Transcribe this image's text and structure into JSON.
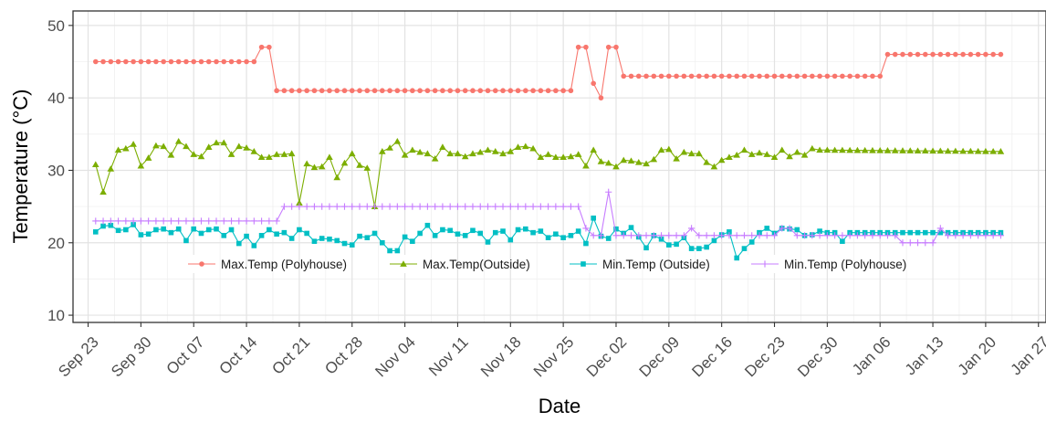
{
  "chart_data": {
    "type": "line",
    "title": "",
    "xlabel": "Date",
    "ylabel": "Temperature (°C)",
    "ylim": [
      9,
      52
    ],
    "xlim": [
      "2021-09-21",
      "2022-01-28"
    ],
    "year": 2021,
    "x_ticks": [
      "Sep 23",
      "Sep 30",
      "Oct 07",
      "Oct 14",
      "Oct 21",
      "Oct 28",
      "Nov 04",
      "Nov 11",
      "Nov 18",
      "Nov 25",
      "Dec 02",
      "Dec 09",
      "Dec 16",
      "Dec 23",
      "Dec 30",
      "Jan 06",
      "Jan 13",
      "Jan 20",
      "Jan 27"
    ],
    "y_ticks": [
      10,
      20,
      30,
      40,
      50
    ],
    "grid": true,
    "legend_position": "inside-bottom",
    "series": [
      {
        "name": "Max.Temp (Polyhouse)",
        "color": "#f8766d",
        "marker": "circle",
        "points": [
          [
            "2021-09-24",
            45
          ],
          [
            "2021-10-15",
            45
          ],
          [
            "2021-10-16",
            47
          ],
          [
            "2021-10-17",
            47
          ],
          [
            "2021-10-18",
            41
          ],
          [
            "2021-11-26",
            41
          ],
          [
            "2021-11-27",
            47
          ],
          [
            "2021-11-28",
            47
          ],
          [
            "2021-11-29",
            42
          ],
          [
            "2021-11-30",
            40
          ],
          [
            "2021-12-01",
            47
          ],
          [
            "2021-12-02",
            47
          ],
          [
            "2021-12-03",
            43
          ],
          [
            "2022-01-06",
            43
          ],
          [
            "2022-01-07",
            46
          ],
          [
            "2022-01-22",
            46
          ]
        ]
      },
      {
        "name": "Max.Temp(Outside)",
        "color": "#7cae00",
        "marker": "triangle",
        "points": [
          [
            "2021-09-24",
            30.8
          ],
          [
            "2021-09-25",
            27
          ],
          [
            "2021-09-26",
            30.2
          ],
          [
            "2021-09-27",
            32.8
          ],
          [
            "2021-09-28",
            33
          ],
          [
            "2021-09-29",
            33.6
          ],
          [
            "2021-09-30",
            30.6
          ],
          [
            "2021-10-01",
            31.7
          ],
          [
            "2021-10-02",
            33.4
          ],
          [
            "2021-10-03",
            33.3
          ],
          [
            "2021-10-04",
            32.1
          ],
          [
            "2021-10-05",
            34
          ],
          [
            "2021-10-06",
            33.3
          ],
          [
            "2021-10-07",
            32.2
          ],
          [
            "2021-10-08",
            31.9
          ],
          [
            "2021-10-09",
            33.2
          ],
          [
            "2021-10-10",
            33.8
          ],
          [
            "2021-10-11",
            33.8
          ],
          [
            "2021-10-12",
            32.2
          ],
          [
            "2021-10-13",
            33.3
          ],
          [
            "2021-10-14",
            33.1
          ],
          [
            "2021-10-15",
            32.6
          ],
          [
            "2021-10-16",
            31.8
          ],
          [
            "2021-10-17",
            31.8
          ],
          [
            "2021-10-18",
            32.2
          ],
          [
            "2021-10-19",
            32.2
          ],
          [
            "2021-10-20",
            32.3
          ],
          [
            "2021-10-21",
            25.5
          ],
          [
            "2021-10-22",
            30.9
          ],
          [
            "2021-10-23",
            30.4
          ],
          [
            "2021-10-24",
            30.5
          ],
          [
            "2021-10-25",
            31.8
          ],
          [
            "2021-10-26",
            29
          ],
          [
            "2021-10-27",
            31
          ],
          [
            "2021-10-28",
            32.3
          ],
          [
            "2021-10-29",
            30.7
          ],
          [
            "2021-10-30",
            30.3
          ],
          [
            "2021-10-31",
            25
          ],
          [
            "2021-11-01",
            32.6
          ],
          [
            "2021-11-02",
            33.1
          ],
          [
            "2021-11-03",
            34
          ],
          [
            "2021-11-04",
            32.1
          ],
          [
            "2021-11-05",
            32.8
          ],
          [
            "2021-11-06",
            32.5
          ],
          [
            "2021-11-07",
            32.3
          ],
          [
            "2021-11-08",
            31.6
          ],
          [
            "2021-11-09",
            33.2
          ],
          [
            "2021-11-10",
            32.3
          ],
          [
            "2021-11-11",
            32.3
          ],
          [
            "2021-11-12",
            31.9
          ],
          [
            "2021-11-13",
            32.3
          ],
          [
            "2021-11-14",
            32.5
          ],
          [
            "2021-11-15",
            32.8
          ],
          [
            "2021-11-16",
            32.6
          ],
          [
            "2021-11-17",
            32.3
          ],
          [
            "2021-11-18",
            32.6
          ],
          [
            "2021-11-19",
            33.2
          ],
          [
            "2021-11-20",
            33.3
          ],
          [
            "2021-11-21",
            33
          ],
          [
            "2021-11-22",
            31.8
          ],
          [
            "2021-11-23",
            32.2
          ],
          [
            "2021-11-24",
            31.8
          ],
          [
            "2021-11-25",
            31.8
          ],
          [
            "2021-11-26",
            31.9
          ],
          [
            "2021-11-27",
            32.2
          ],
          [
            "2021-11-28",
            30.6
          ],
          [
            "2021-11-29",
            32.8
          ],
          [
            "2021-11-30",
            31.2
          ],
          [
            "2021-12-01",
            31
          ],
          [
            "2021-12-02",
            30.5
          ],
          [
            "2021-12-03",
            31.4
          ],
          [
            "2021-12-04",
            31.3
          ],
          [
            "2021-12-05",
            31.1
          ],
          [
            "2021-12-06",
            30.9
          ],
          [
            "2021-12-07",
            31.5
          ],
          [
            "2021-12-08",
            32.8
          ],
          [
            "2021-12-09",
            32.9
          ],
          [
            "2021-12-10",
            31.6
          ],
          [
            "2021-12-11",
            32.5
          ],
          [
            "2021-12-12",
            32.3
          ],
          [
            "2021-12-13",
            32.3
          ],
          [
            "2021-12-14",
            31.1
          ],
          [
            "2021-12-15",
            30.5
          ],
          [
            "2021-12-16",
            31.4
          ],
          [
            "2021-12-17",
            31.8
          ],
          [
            "2021-12-18",
            32.1
          ],
          [
            "2021-12-19",
            32.8
          ],
          [
            "2021-12-20",
            32.2
          ],
          [
            "2021-12-21",
            32.4
          ],
          [
            "2021-12-22",
            32.2
          ],
          [
            "2021-12-23",
            31.8
          ],
          [
            "2021-12-24",
            32.8
          ],
          [
            "2021-12-25",
            31.9
          ],
          [
            "2021-12-26",
            32.5
          ],
          [
            "2021-12-27",
            32.1
          ],
          [
            "2021-12-28",
            33
          ],
          [
            "2021-12-29",
            32.8
          ],
          [
            "2022-01-22",
            32.6
          ]
        ]
      },
      {
        "name": "Min.Temp (Outside)",
        "color": "#00bfc4",
        "marker": "square",
        "points": [
          [
            "2021-09-24",
            21.5
          ],
          [
            "2021-09-25",
            22.3
          ],
          [
            "2021-09-26",
            22.4
          ],
          [
            "2021-09-27",
            21.7
          ],
          [
            "2021-09-28",
            21.8
          ],
          [
            "2021-09-29",
            22.5
          ],
          [
            "2021-09-30",
            21.1
          ],
          [
            "2021-10-01",
            21.2
          ],
          [
            "2021-10-02",
            21.8
          ],
          [
            "2021-10-03",
            21.9
          ],
          [
            "2021-10-04",
            21.4
          ],
          [
            "2021-10-05",
            21.9
          ],
          [
            "2021-10-06",
            20.3
          ],
          [
            "2021-10-07",
            21.9
          ],
          [
            "2021-10-08",
            21.3
          ],
          [
            "2021-10-09",
            21.8
          ],
          [
            "2021-10-10",
            21.9
          ],
          [
            "2021-10-11",
            21
          ],
          [
            "2021-10-12",
            21.8
          ],
          [
            "2021-10-13",
            19.9
          ],
          [
            "2021-10-14",
            20.9
          ],
          [
            "2021-10-15",
            19.6
          ],
          [
            "2021-10-16",
            21
          ],
          [
            "2021-10-17",
            21.8
          ],
          [
            "2021-10-18",
            21.2
          ],
          [
            "2021-10-19",
            21.4
          ],
          [
            "2021-10-20",
            20.6
          ],
          [
            "2021-10-21",
            21.8
          ],
          [
            "2021-10-22",
            21.3
          ],
          [
            "2021-10-23",
            20.2
          ],
          [
            "2021-10-24",
            20.6
          ],
          [
            "2021-10-25",
            20.5
          ],
          [
            "2021-10-26",
            20.3
          ],
          [
            "2021-10-27",
            19.9
          ],
          [
            "2021-10-28",
            19.7
          ],
          [
            "2021-10-29",
            20.9
          ],
          [
            "2021-10-30",
            20.7
          ],
          [
            "2021-10-31",
            21.3
          ],
          [
            "2021-11-01",
            20
          ],
          [
            "2021-11-02",
            18.9
          ],
          [
            "2021-11-03",
            18.9
          ],
          [
            "2021-11-04",
            20.8
          ],
          [
            "2021-11-05",
            20.2
          ],
          [
            "2021-11-06",
            21.3
          ],
          [
            "2021-11-07",
            22.4
          ],
          [
            "2021-11-08",
            21
          ],
          [
            "2021-11-09",
            21.8
          ],
          [
            "2021-11-10",
            21.7
          ],
          [
            "2021-11-11",
            21.2
          ],
          [
            "2021-11-12",
            21
          ],
          [
            "2021-11-13",
            21.7
          ],
          [
            "2021-11-14",
            21.3
          ],
          [
            "2021-11-15",
            20.1
          ],
          [
            "2021-11-16",
            21.4
          ],
          [
            "2021-11-17",
            21.6
          ],
          [
            "2021-11-18",
            20.4
          ],
          [
            "2021-11-19",
            21.8
          ],
          [
            "2021-11-20",
            21.9
          ],
          [
            "2021-11-21",
            21.4
          ],
          [
            "2021-11-22",
            21.6
          ],
          [
            "2021-11-23",
            20.7
          ],
          [
            "2021-11-24",
            21.2
          ],
          [
            "2021-11-25",
            20.7
          ],
          [
            "2021-11-26",
            21
          ],
          [
            "2021-11-27",
            21.6
          ],
          [
            "2021-11-28",
            19.9
          ],
          [
            "2021-11-29",
            23.4
          ],
          [
            "2021-11-30",
            20.9
          ],
          [
            "2021-12-01",
            20.6
          ],
          [
            "2021-12-02",
            21.9
          ],
          [
            "2021-12-03",
            21.3
          ],
          [
            "2021-12-04",
            22.1
          ],
          [
            "2021-12-05",
            20.8
          ],
          [
            "2021-12-06",
            19.3
          ],
          [
            "2021-12-07",
            21
          ],
          [
            "2021-12-08",
            20.5
          ],
          [
            "2021-12-09",
            19.7
          ],
          [
            "2021-12-10",
            19.8
          ],
          [
            "2021-12-11",
            20.7
          ],
          [
            "2021-12-12",
            19.2
          ],
          [
            "2021-12-13",
            19.2
          ],
          [
            "2021-12-14",
            19.4
          ],
          [
            "2021-12-15",
            20.3
          ],
          [
            "2021-12-16",
            21.1
          ],
          [
            "2021-12-17",
            21.5
          ],
          [
            "2021-12-18",
            17.9
          ],
          [
            "2021-12-19",
            19.2
          ],
          [
            "2021-12-20",
            20.1
          ],
          [
            "2021-12-21",
            21.4
          ],
          [
            "2021-12-22",
            22
          ],
          [
            "2021-12-23",
            21.3
          ],
          [
            "2021-12-24",
            22
          ],
          [
            "2021-12-25",
            21.9
          ],
          [
            "2021-12-26",
            21.8
          ],
          [
            "2021-12-27",
            21
          ],
          [
            "2021-12-28",
            21.1
          ],
          [
            "2021-12-29",
            21.6
          ],
          [
            "2021-12-30",
            21.4
          ],
          [
            "2021-12-31",
            21.4
          ],
          [
            "2022-01-01",
            20.2
          ],
          [
            "2022-01-02",
            21.4
          ],
          [
            "2022-01-22",
            21.4
          ]
        ]
      },
      {
        "name": "Min.Temp (Polyhouse)",
        "color": "#c77cff",
        "marker": "plus",
        "points": [
          [
            "2021-09-24",
            23
          ],
          [
            "2021-10-18",
            23
          ],
          [
            "2021-10-19",
            25
          ],
          [
            "2021-11-27",
            25
          ],
          [
            "2021-11-28",
            22
          ],
          [
            "2021-11-29",
            21
          ],
          [
            "2021-11-30",
            21
          ],
          [
            "2021-12-01",
            27
          ],
          [
            "2021-12-02",
            21
          ],
          [
            "2021-12-11",
            21
          ],
          [
            "2021-12-12",
            22
          ],
          [
            "2021-12-13",
            21
          ],
          [
            "2021-12-23",
            21
          ],
          [
            "2021-12-24",
            22
          ],
          [
            "2021-12-25",
            22
          ],
          [
            "2021-12-26",
            21
          ],
          [
            "2022-01-08",
            21
          ],
          [
            "2022-01-09",
            20
          ],
          [
            "2022-01-13",
            20
          ],
          [
            "2022-01-14",
            22
          ],
          [
            "2022-01-15",
            21
          ],
          [
            "2022-01-22",
            21
          ]
        ]
      }
    ]
  }
}
